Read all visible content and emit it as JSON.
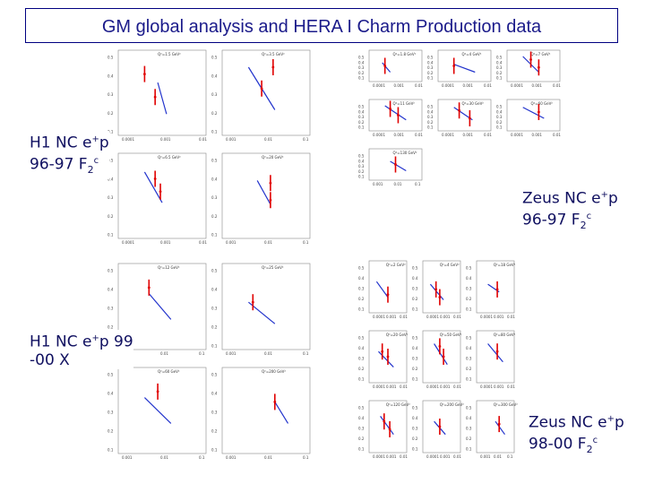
{
  "title": "GM global analysis and HERA I Charm Production data",
  "labels": {
    "h1_9697": {
      "line1": "H1 NC e",
      "sup1": "+",
      "tail1": "p",
      "line2": "96-97 F",
      "sub2": "2",
      "sup2": "c"
    },
    "zeus_9697": {
      "line1": "Zeus NC e",
      "sup1": "+",
      "tail1": "p",
      "line2": "96-97 F",
      "sub2": "2",
      "sup2": "c"
    },
    "h1_9900": {
      "line1": "H1 NC e",
      "sup1": "+",
      "tail1": "p 99",
      "line2": "-00 X"
    },
    "zeus_9800": {
      "line1": "Zeus NC e",
      "sup1": "+",
      "tail1": "p",
      "line2": "98-00 F",
      "sub2": "2",
      "sup2": "c"
    }
  },
  "panels": {
    "h1_top": [
      {
        "q2": "Q²=1.5 GeV²",
        "yticks": [
          "0.5",
          "0.4",
          "0.3",
          "0.2",
          "0.1"
        ],
        "xticks": [
          "0.0001",
          "0.001",
          "0.01"
        ],
        "line": [
          [
            0.45,
            0.62
          ],
          [
            0.55,
            0.25
          ]
        ],
        "pts": [
          [
            0.3,
            0.72
          ],
          [
            0.42,
            0.45
          ]
        ]
      },
      {
        "q2": "Q²=3.5 GeV²",
        "yticks": [
          "0.5",
          "0.4",
          "0.3",
          "0.2",
          "0.1"
        ],
        "xticks": [
          "0.001",
          "0.01",
          "0.1"
        ],
        "line": [
          [
            0.3,
            0.8
          ],
          [
            0.6,
            0.3
          ]
        ],
        "pts": [
          [
            0.58,
            0.8
          ],
          [
            0.45,
            0.55
          ]
        ]
      },
      {
        "q2": "Q²=6.5 GeV²",
        "yticks": [
          "0.5",
          "0.4",
          "0.3",
          "0.2",
          "0.1"
        ],
        "xticks": [
          "0.0001",
          "0.001",
          "0.01"
        ],
        "line": [
          [
            0.3,
            0.78
          ],
          [
            0.5,
            0.42
          ]
        ],
        "pts": [
          [
            0.42,
            0.7
          ],
          [
            0.48,
            0.55
          ]
        ]
      },
      {
        "q2": "Q²=20 GeV²",
        "yticks": [
          "0.5",
          "0.4",
          "0.3",
          "0.2",
          "0.1"
        ],
        "xticks": [
          "0.001",
          "0.01",
          "0.1"
        ],
        "line": [
          [
            0.4,
            0.68
          ],
          [
            0.55,
            0.4
          ]
        ],
        "pts": [
          [
            0.55,
            0.65
          ],
          [
            0.55,
            0.45
          ]
        ]
      }
    ],
    "zeus_top": [
      {
        "q2": "Q²=1.8 GeV²",
        "yticks": [
          "0.5",
          "0.4",
          "0.3",
          "0.2",
          "0.1"
        ],
        "xticks": [
          "0.0001",
          "0.001",
          "0.01"
        ],
        "line": [
          [
            0.25,
            0.6
          ],
          [
            0.4,
            0.3
          ]
        ],
        "pts": [
          [
            0.3,
            0.5
          ]
        ]
      },
      {
        "q2": "Q²=4 GeV²",
        "yticks": [
          "0.5",
          "0.4",
          "0.3",
          "0.2",
          "0.1"
        ],
        "xticks": [
          "0.0001",
          "0.001",
          "0.01"
        ],
        "line": [
          [
            0.3,
            0.55
          ],
          [
            0.7,
            0.3
          ]
        ],
        "pts": [
          [
            0.3,
            0.5
          ]
        ]
      },
      {
        "q2": "Q²=7 GeV²",
        "yticks": [
          "0.5",
          "0.4",
          "0.3",
          "0.2",
          "0.1"
        ],
        "xticks": [
          "0.0001",
          "0.001",
          "0.01"
        ],
        "line": [
          [
            0.3,
            0.8
          ],
          [
            0.6,
            0.3
          ]
        ],
        "pts": [
          [
            0.45,
            0.7
          ],
          [
            0.6,
            0.45
          ]
        ]
      },
      {
        "q2": "Q²=11 GeV²",
        "yticks": [
          "0.5",
          "0.4",
          "0.3",
          "0.2",
          "0.1"
        ],
        "xticks": [
          "0.0001",
          "0.001",
          "0.01"
        ],
        "line": [
          [
            0.3,
            0.8
          ],
          [
            0.7,
            0.35
          ]
        ],
        "pts": [
          [
            0.4,
            0.7
          ],
          [
            0.55,
            0.5
          ]
        ]
      },
      {
        "q2": "Q²=30 GeV²",
        "yticks": [
          "0.5",
          "0.4",
          "0.3",
          "0.2",
          "0.1"
        ],
        "xticks": [
          "0.0001",
          "0.001",
          "0.01"
        ],
        "line": [
          [
            0.3,
            0.75
          ],
          [
            0.65,
            0.35
          ]
        ],
        "pts": [
          [
            0.4,
            0.65
          ],
          [
            0.6,
            0.4
          ]
        ]
      },
      {
        "q2": "Q²=60 GeV²",
        "yticks": [
          "0.5",
          "0.4",
          "0.3",
          "0.2",
          "0.1"
        ],
        "xticks": [
          "0.0001",
          "0.001",
          "0.01"
        ],
        "line": [
          [
            0.3,
            0.75
          ],
          [
            0.7,
            0.4
          ]
        ],
        "pts": [
          [
            0.6,
            0.6
          ]
        ]
      },
      {
        "q2": "Q²=130 GeV²",
        "yticks": [
          "0.5",
          "0.4",
          "0.3",
          "0.2",
          "0.1"
        ],
        "xticks": [
          "0.001",
          "0.01",
          "0.1"
        ],
        "line": [
          [
            0.4,
            0.6
          ],
          [
            0.7,
            0.3
          ]
        ],
        "pts": [
          [
            0.5,
            0.5
          ]
        ]
      }
    ],
    "h1_bottom": [
      {
        "q2": "Q²=12 GeV²",
        "yticks": [
          "0.5",
          "0.4",
          "0.3",
          "0.2",
          "0.1"
        ],
        "xticks": [
          "0.001",
          "0.01",
          "0.1"
        ],
        "line": [
          [
            0.35,
            0.65
          ],
          [
            0.6,
            0.35
          ]
        ],
        "pts": [
          [
            0.35,
            0.72
          ]
        ]
      },
      {
        "q2": "Q²=25 GeV²",
        "yticks": [
          "0.5",
          "0.4",
          "0.3",
          "0.2",
          "0.1"
        ],
        "xticks": [
          "0.001",
          "0.01",
          "0.1"
        ],
        "line": [
          [
            0.3,
            0.55
          ],
          [
            0.6,
            0.3
          ]
        ],
        "pts": [
          [
            0.35,
            0.55
          ]
        ]
      },
      {
        "q2": "Q²=60 GeV²",
        "yticks": [
          "0.5",
          "0.4",
          "0.3",
          "0.2",
          "0.1"
        ],
        "xticks": [
          "0.001",
          "0.01",
          "0.1"
        ],
        "line": [
          [
            0.3,
            0.65
          ],
          [
            0.6,
            0.35
          ]
        ],
        "pts": [
          [
            0.45,
            0.72
          ]
        ]
      },
      {
        "q2": "Q²=200 GeV²",
        "yticks": [
          "0.5",
          "0.4",
          "0.3",
          "0.2",
          "0.1"
        ],
        "xticks": [
          "0.001",
          "0.01",
          "0.1"
        ],
        "line": [
          [
            0.6,
            0.6
          ],
          [
            0.75,
            0.35
          ]
        ],
        "pts": [
          [
            0.6,
            0.6
          ]
        ]
      }
    ],
    "zeus_bottom": [
      {
        "q2": "Q²=2 GeV²",
        "yticks": [
          "0.5",
          "0.4",
          "0.3",
          "0.2",
          "0.1"
        ],
        "xticks": [
          "0.0001",
          "0.001",
          "0.01"
        ],
        "line": [
          [
            0.2,
            0.6
          ],
          [
            0.5,
            0.3
          ]
        ],
        "pts": [
          [
            0.5,
            0.35
          ]
        ]
      },
      {
        "q2": "Q²=4 GeV²",
        "yticks": [
          "0.5",
          "0.4",
          "0.3",
          "0.2",
          "0.1"
        ],
        "xticks": [
          "0.0001",
          "0.001",
          "0.01"
        ],
        "line": [
          [
            0.2,
            0.55
          ],
          [
            0.55,
            0.25
          ]
        ],
        "pts": [
          [
            0.35,
            0.45
          ],
          [
            0.45,
            0.3
          ]
        ]
      },
      {
        "q2": "Q²=18 GeV²",
        "yticks": [
          "0.5",
          "0.4",
          "0.3",
          "0.2",
          "0.1"
        ],
        "xticks": [
          "0.0001",
          "0.001",
          "0.01"
        ],
        "line": [
          [
            0.3,
            0.55
          ],
          [
            0.6,
            0.4
          ]
        ],
        "pts": [
          [
            0.55,
            0.45
          ]
        ]
      },
      {
        "q2": "Q²=20 GeV²",
        "yticks": [
          "0.5",
          "0.4",
          "0.3",
          "0.2",
          "0.1"
        ],
        "xticks": [
          "0.0001",
          "0.001",
          "0.01"
        ],
        "line": [
          [
            0.25,
            0.6
          ],
          [
            0.65,
            0.3
          ]
        ],
        "pts": [
          [
            0.35,
            0.6
          ],
          [
            0.5,
            0.5
          ]
        ]
      },
      {
        "q2": "Q²=50 GeV²",
        "yticks": [
          "0.5",
          "0.4",
          "0.3",
          "0.2",
          "0.1"
        ],
        "xticks": [
          "0.0001",
          "0.001",
          "0.01"
        ],
        "line": [
          [
            0.3,
            0.75
          ],
          [
            0.65,
            0.35
          ]
        ],
        "pts": [
          [
            0.45,
            0.7
          ],
          [
            0.55,
            0.5
          ]
        ]
      },
      {
        "q2": "Q²=80 GeV²",
        "yticks": [
          "0.5",
          "0.4",
          "0.3",
          "0.2",
          "0.1"
        ],
        "xticks": [
          "0.0001",
          "0.001",
          "0.01"
        ],
        "line": [
          [
            0.3,
            0.75
          ],
          [
            0.7,
            0.4
          ]
        ],
        "pts": [
          [
            0.55,
            0.6
          ]
        ]
      },
      {
        "q2": "Q²=120 GeV²",
        "yticks": [
          "0.5",
          "0.4",
          "0.3",
          "0.2",
          "0.1"
        ],
        "xticks": [
          "0.0001",
          "0.001",
          "0.01"
        ],
        "line": [
          [
            0.3,
            0.7
          ],
          [
            0.65,
            0.35
          ]
        ],
        "pts": [
          [
            0.4,
            0.6
          ],
          [
            0.55,
            0.45
          ]
        ]
      },
      {
        "q2": "Q²=200 GeV²",
        "yticks": [
          "0.5",
          "0.4",
          "0.3",
          "0.2",
          "0.1"
        ],
        "xticks": [
          "0.0001",
          "0.001",
          "0.01"
        ],
        "line": [
          [
            0.3,
            0.6
          ],
          [
            0.6,
            0.35
          ]
        ],
        "pts": [
          [
            0.45,
            0.5
          ]
        ]
      },
      {
        "q2": "Q²=300 GeV²",
        "yticks": [
          "0.5",
          "0.4",
          "0.3",
          "0.2",
          "0.1"
        ],
        "xticks": [
          "0.001",
          "0.01",
          "0.1"
        ],
        "line": [
          [
            0.5,
            0.6
          ],
          [
            0.75,
            0.35
          ]
        ],
        "pts": [
          [
            0.6,
            0.55
          ]
        ]
      }
    ]
  },
  "colors": {
    "title": "#1a1a8a",
    "frame": "#000080",
    "data": "#e00000",
    "theory": "#2233cc"
  }
}
